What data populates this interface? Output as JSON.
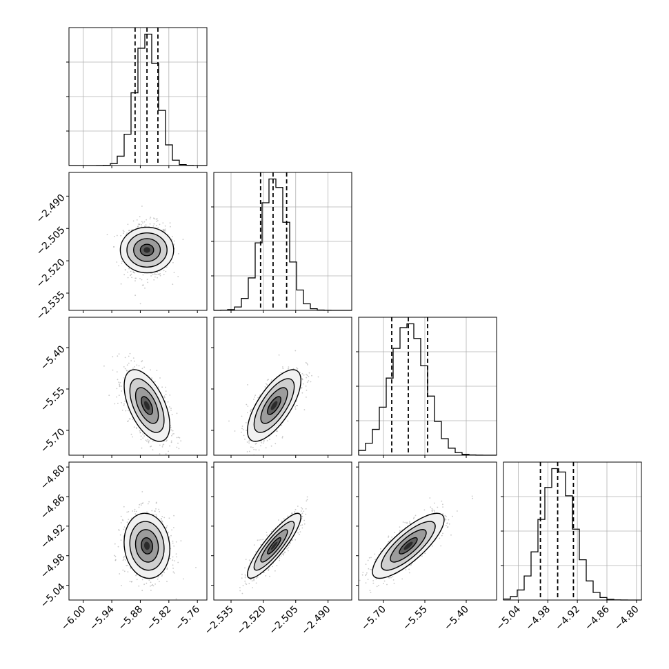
{
  "chart_data": {
    "type": "corner",
    "parameters": [
      {
        "index": 0,
        "range": [
          -6.03,
          -5.74
        ],
        "ticks": [
          "−6.00",
          "−5.94",
          "−5.88",
          "−5.82",
          "−5.76"
        ],
        "tick_values": [
          -6.0,
          -5.94,
          -5.88,
          -5.82,
          -5.76
        ],
        "quantiles": [
          -5.891,
          -5.866,
          -5.843
        ],
        "mean": -5.866,
        "sd": 0.024
      },
      {
        "index": 1,
        "range": [
          -2.543,
          -2.479
        ],
        "ticks": [
          "−2.535",
          "−2.520",
          "−2.505",
          "−2.490"
        ],
        "tick_values": [
          -2.535,
          -2.52,
          -2.505,
          -2.49
        ],
        "quantiles": [
          -2.5213,
          -2.5155,
          -2.5092
        ],
        "mean": -2.515,
        "sd": 0.0062
      },
      {
        "index": 2,
        "range": [
          -5.79,
          -5.29
        ],
        "ticks": [
          "−5.70",
          "−5.55",
          "−5.40"
        ],
        "tick_values": [
          -5.7,
          -5.55,
          -5.4
        ],
        "quantiles": [
          -5.67,
          -5.61,
          -5.54
        ],
        "mean": -5.61,
        "sd": 0.065
      },
      {
        "index": 3,
        "range": [
          -5.07,
          -4.79
        ],
        "ticks": [
          "−5.04",
          "−4.98",
          "−4.92",
          "−4.86",
          "−4.80"
        ],
        "tick_values": [
          -5.04,
          -4.98,
          -4.92,
          -4.86,
          -4.8
        ],
        "quantiles": [
          -4.995,
          -4.96,
          -4.928
        ],
        "mean": -4.96,
        "sd": 0.033
      }
    ],
    "histogram_bins": 20,
    "correlations": [
      {
        "x": 0,
        "y": 1,
        "r": 0.0
      },
      {
        "x": 0,
        "y": 2,
        "r": -0.55
      },
      {
        "x": 1,
        "y": 2,
        "r": 0.7
      },
      {
        "x": 0,
        "y": 3,
        "r": -0.1
      },
      {
        "x": 1,
        "y": 3,
        "r": 0.88
      },
      {
        "x": 2,
        "y": 3,
        "r": 0.8
      }
    ],
    "grid": true,
    "title": "",
    "xlabel": "",
    "ylabel": "",
    "colors": {
      "contour": "#000000",
      "points": "#9a9a9a",
      "grid": "#b0b0b0",
      "axis": "#000000"
    }
  }
}
